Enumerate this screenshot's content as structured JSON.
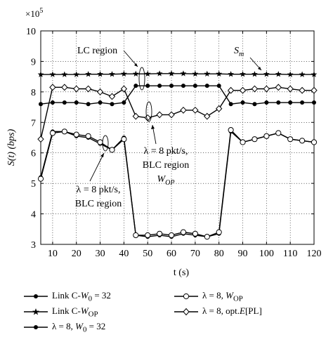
{
  "chart_data": {
    "type": "line",
    "xlabel": "t (s)",
    "ylabel": "S(t) (bps)",
    "y_multiplier_label": "×10",
    "y_multiplier_exp": "5",
    "xlim": [
      5,
      120
    ],
    "ylim": [
      3,
      10
    ],
    "xticks": [
      10,
      20,
      30,
      40,
      50,
      60,
      70,
      80,
      90,
      100,
      110,
      120
    ],
    "yticks": [
      3,
      4,
      5,
      6,
      7,
      8,
      9,
      10
    ],
    "grid": true,
    "x": [
      5,
      10,
      15,
      20,
      25,
      30,
      35,
      40,
      45,
      50,
      55,
      60,
      65,
      70,
      75,
      80,
      85,
      90,
      95,
      100,
      105,
      110,
      115,
      120
    ],
    "series": [
      {
        "name": "Link C-W0 = 32",
        "marker": "dot",
        "values": [
          7.6,
          7.65,
          7.65,
          7.65,
          7.6,
          7.65,
          7.6,
          7.65,
          8.2,
          8.2,
          8.2,
          8.2,
          8.2,
          8.2,
          8.2,
          8.2,
          7.6,
          7.65,
          7.6,
          7.65,
          7.65,
          7.65,
          7.65,
          7.65
        ]
      },
      {
        "name": "Link C-WOP",
        "marker": "star",
        "values": [
          8.57,
          8.57,
          8.57,
          8.57,
          8.58,
          8.58,
          8.58,
          8.59,
          8.59,
          8.59,
          8.6,
          8.6,
          8.6,
          8.59,
          8.59,
          8.59,
          8.58,
          8.58,
          8.58,
          8.58,
          8.58,
          8.57,
          8.57,
          8.57
        ]
      },
      {
        "name": "λ = 8, W0 = 32",
        "marker": "dot",
        "values": [
          5.2,
          6.7,
          6.7,
          6.55,
          6.5,
          6.3,
          6.1,
          6.5,
          3.3,
          3.25,
          3.3,
          3.25,
          3.35,
          3.3,
          3.25,
          3.35,
          6.7,
          6.35,
          6.45,
          6.55,
          6.65,
          6.45,
          6.4,
          6.35
        ]
      },
      {
        "name": "λ = 8, WOP",
        "marker": "circle",
        "values": [
          5.15,
          6.65,
          6.7,
          6.6,
          6.55,
          6.35,
          6.1,
          6.45,
          3.3,
          3.3,
          3.35,
          3.3,
          3.4,
          3.35,
          3.25,
          3.4,
          6.75,
          6.35,
          6.45,
          6.55,
          6.65,
          6.45,
          6.4,
          6.35
        ]
      },
      {
        "name": "λ = 8, opt.E[PL]",
        "marker": "diamond",
        "values": [
          6.45,
          8.15,
          8.15,
          8.1,
          8.1,
          8.0,
          7.85,
          8.1,
          7.2,
          7.15,
          7.25,
          7.25,
          7.4,
          7.4,
          7.2,
          7.45,
          8.05,
          8.05,
          8.1,
          8.1,
          8.15,
          8.1,
          8.05,
          8.05
        ]
      }
    ],
    "annotations": {
      "lc_region": "LC region",
      "sm_main": "S",
      "sm_sub": "m",
      "blc_top_1": "λ = 8 pkt/s,",
      "blc_top_2": "BLC region",
      "blc_top_3_main": "W",
      "blc_top_3_sub": "OP",
      "blc_left_1": "λ = 8 pkt/s,",
      "blc_left_2": "BLC region"
    }
  },
  "legend": {
    "items": [
      {
        "main": "Link C-",
        "w": "W",
        "sub": "0",
        "rest": " = 32",
        "marker": "dot"
      },
      {
        "main": "Link C-",
        "w": "W",
        "sub": "OP",
        "rest": "",
        "marker": "star"
      },
      {
        "main": "λ = 8, ",
        "w": "W",
        "sub": "0",
        "rest": " = 32",
        "marker": "dot"
      },
      {
        "main": "λ = 8, ",
        "w": "W",
        "sub": "OP",
        "rest": "",
        "marker": "circle"
      },
      {
        "main": "λ = 8, opt.",
        "w": "E",
        "sub": "",
        "rest": "[PL]",
        "marker": "diamond"
      }
    ]
  }
}
